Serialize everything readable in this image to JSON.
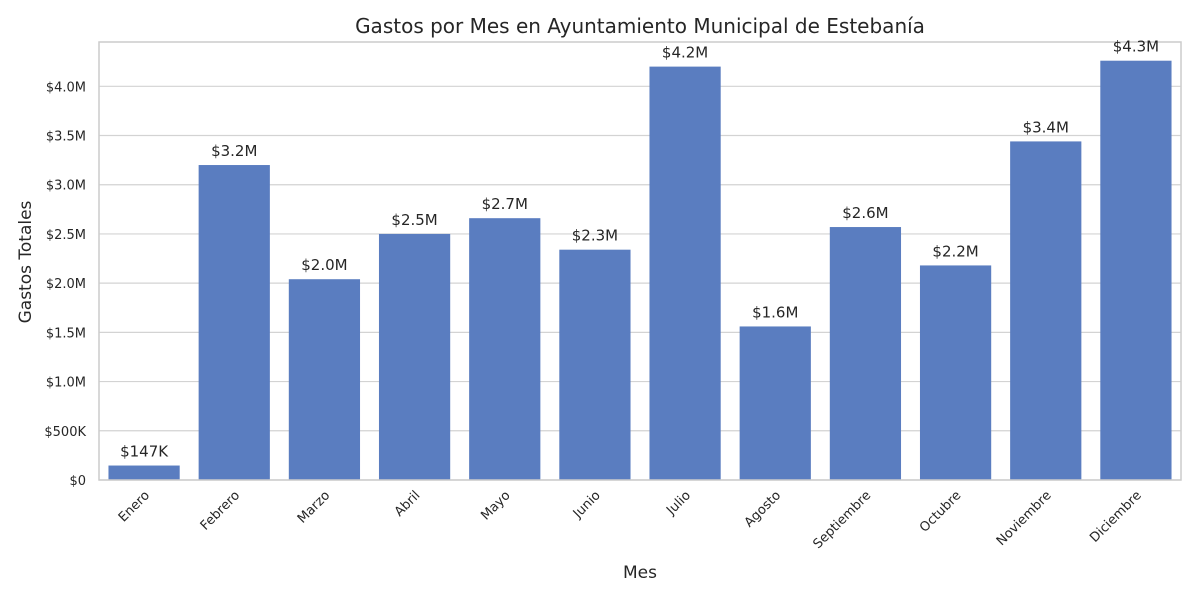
{
  "chart_data": {
    "type": "bar",
    "title": "Gastos por Mes en Ayuntamiento Municipal de Estebanía",
    "xlabel": "Mes",
    "ylabel": "Gastos Totales",
    "categories": [
      "Enero",
      "Febrero",
      "Marzo",
      "Abril",
      "Mayo",
      "Junio",
      "Julio",
      "Agosto",
      "Septiembre",
      "Octubre",
      "Noviembre",
      "Diciembre"
    ],
    "values": [
      147000,
      3200000,
      2040000,
      2500000,
      2660000,
      2340000,
      4200000,
      1560000,
      2570000,
      2180000,
      3440000,
      4260000
    ],
    "value_labels": [
      "$147K",
      "$3.2M",
      "$2.0M",
      "$2.5M",
      "$2.7M",
      "$2.3M",
      "$4.2M",
      "$1.6M",
      "$2.6M",
      "$2.2M",
      "$3.4M",
      "$4.3M"
    ],
    "ylim": [
      0,
      4450000
    ],
    "yticks": [
      0,
      500000,
      1000000,
      1500000,
      2000000,
      2500000,
      3000000,
      3500000,
      4000000
    ],
    "ytick_labels": [
      "$0",
      "$500K",
      "$1.0M",
      "$1.5M",
      "$2.0M",
      "$2.5M",
      "$3.0M",
      "$3.5M",
      "$4.0M"
    ],
    "grid": "horizontal",
    "bar_color": "#5a7dc0",
    "grid_color": "#d3d3d3",
    "frame_color": "#cccccc"
  }
}
